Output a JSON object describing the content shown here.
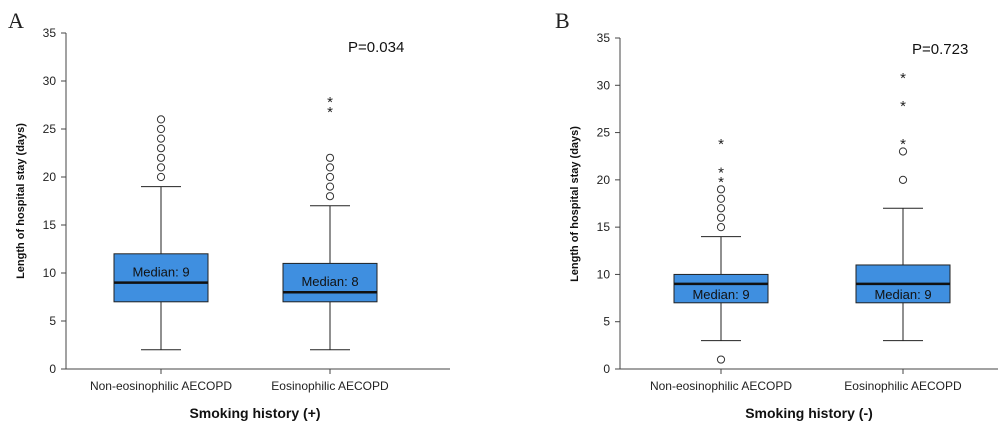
{
  "chart_data": [
    {
      "type": "box",
      "panel": "A",
      "p_value": "P=0.034",
      "xlabel": "Smoking history (+)",
      "ylabel": "Length of hospital stay (days)",
      "ylim": [
        0,
        35
      ],
      "yticks": [
        0,
        5,
        10,
        15,
        20,
        25,
        30,
        35
      ],
      "grid": false,
      "categories": [
        "Non-eosinophilic AECOPD",
        "Eosinophilic AECOPD"
      ],
      "boxes": [
        {
          "min": 2,
          "q1": 7,
          "median": 9,
          "q3": 12,
          "max": 19,
          "median_label": "Median: 9",
          "median_label_pos": "above",
          "outliers_circle": [
            20,
            21,
            22,
            23,
            24,
            25,
            26
          ],
          "outliers_star": []
        },
        {
          "min": 2,
          "q1": 7,
          "median": 8,
          "q3": 11,
          "max": 17,
          "median_label": "Median: 8",
          "median_label_pos": "above",
          "outliers_circle": [
            18,
            19,
            20,
            21,
            22
          ],
          "outliers_star": [
            27,
            28
          ]
        }
      ],
      "box_color": "#3f8fe0"
    },
    {
      "type": "box",
      "panel": "B",
      "p_value": "P=0.723",
      "xlabel": "Smoking history (-)",
      "ylabel": "Length of hospital stay (days)",
      "ylim": [
        0,
        35
      ],
      "yticks": [
        0,
        5,
        10,
        15,
        20,
        25,
        30,
        35
      ],
      "grid": false,
      "categories": [
        "Non-eosinophilic AECOPD",
        "Eosinophilic AECOPD"
      ],
      "boxes": [
        {
          "min": 3,
          "q1": 7,
          "median": 9,
          "q3": 10,
          "max": 14,
          "median_label": "Median: 9",
          "median_label_pos": "below",
          "outliers_circle": [
            1,
            15,
            16,
            17,
            18,
            19
          ],
          "outliers_star": [
            20,
            21,
            24
          ]
        },
        {
          "min": 3,
          "q1": 7,
          "median": 9,
          "q3": 11,
          "max": 17,
          "median_label": "Median: 9",
          "median_label_pos": "below",
          "outliers_circle": [
            20,
            23
          ],
          "outliers_star": [
            24,
            28,
            31
          ]
        }
      ],
      "box_color": "#3f8fe0"
    }
  ]
}
